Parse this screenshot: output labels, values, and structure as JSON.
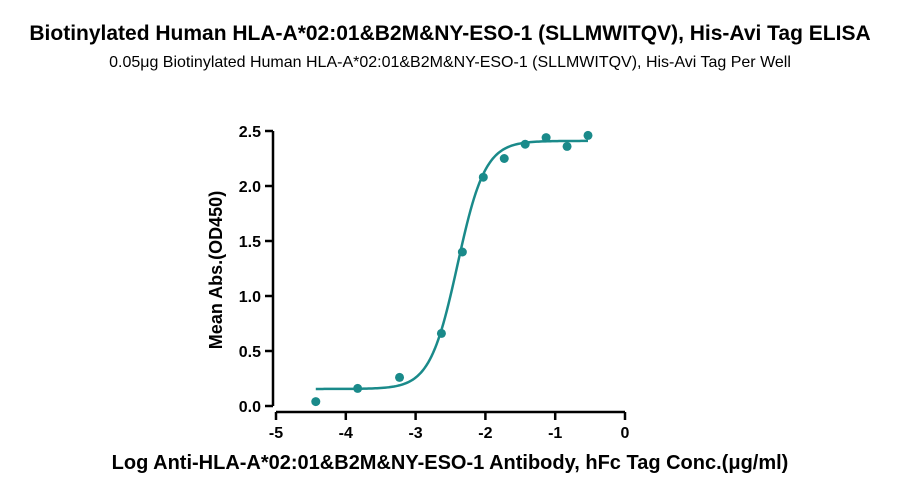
{
  "chart_data": {
    "type": "scatter",
    "title": "Biotinylated Human HLA-A*02:01&B2M&NY-ESO-1 (SLLMWITQV), His-Avi Tag ELISA",
    "subtitle": "0.05μg Biotinylated Human HLA-A*02:01&B2M&NY-ESO-1 (SLLMWITQV), His-Avi Tag Per Well",
    "xlabel": "Log Anti-HLA-A*02:01&B2M&NY-ESO-1 Antibody, hFc Tag Conc.(μg/ml)",
    "ylabel": "Mean Abs.(OD450)",
    "xlim": [
      -5,
      0
    ],
    "ylim": [
      0,
      2.5
    ],
    "x_ticks": [
      -5,
      -4,
      -3,
      -2,
      -1,
      0
    ],
    "x_tick_labels": [
      "-5",
      "-4",
      "-3",
      "-2",
      "-1",
      "0"
    ],
    "y_ticks": [
      0,
      0.5,
      1.0,
      1.5,
      2.0,
      2.5
    ],
    "y_tick_labels": [
      "0.0",
      "0.5",
      "1.0",
      "1.5",
      "2.0",
      "2.5"
    ],
    "color": "#1a8a8a",
    "grid": false,
    "series": [
      {
        "points": [
          {
            "x": -4.43,
            "y": 0.04
          },
          {
            "x": -3.83,
            "y": 0.16
          },
          {
            "x": -3.23,
            "y": 0.26
          },
          {
            "x": -2.63,
            "y": 0.66
          },
          {
            "x": -2.33,
            "y": 1.4
          },
          {
            "x": -2.03,
            "y": 2.08
          },
          {
            "x": -1.73,
            "y": 2.25
          },
          {
            "x": -1.43,
            "y": 2.38
          },
          {
            "x": -1.13,
            "y": 2.44
          },
          {
            "x": -0.83,
            "y": 2.36
          },
          {
            "x": -0.53,
            "y": 2.46
          }
        ],
        "fit": {
          "model": "4PL",
          "bottom": 0.155,
          "top": 2.41,
          "log_ec50": -2.4,
          "hill": 2.2,
          "x_range": [
            -4.43,
            -0.53
          ]
        }
      }
    ]
  }
}
